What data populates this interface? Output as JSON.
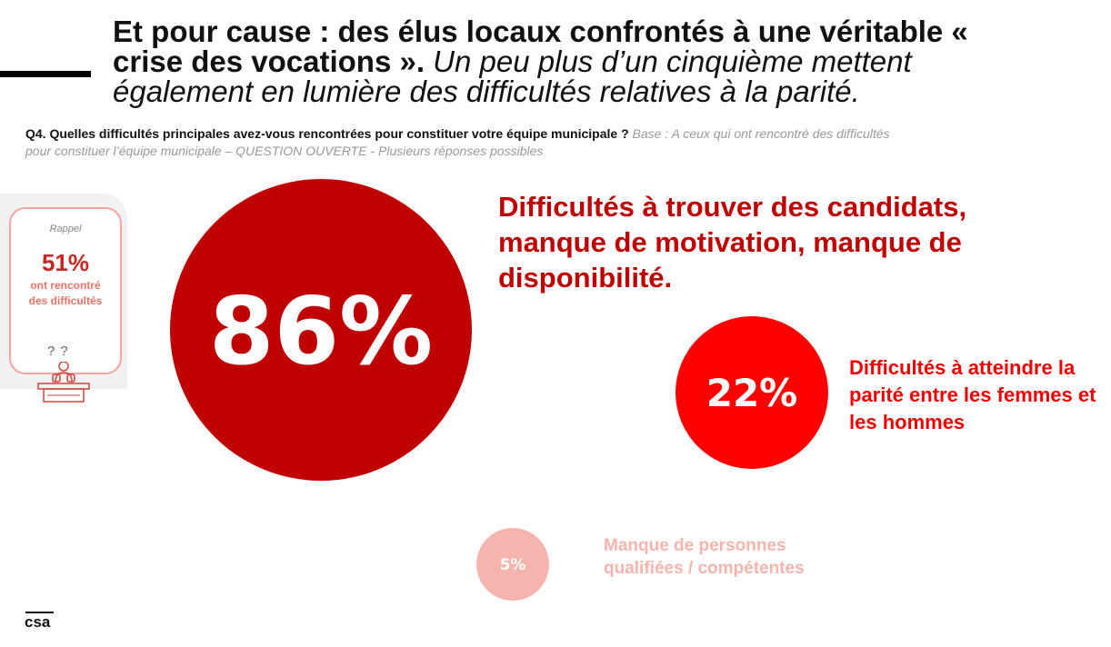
{
  "title": {
    "bold_text": "Et pour cause : des élus locaux confrontés à une véritable « crise des vocations ».",
    "italic_text": " Un peu plus d’un cinquième mettent également en lumière des difficultés relatives à la parité."
  },
  "question": {
    "label": "Q4. Quelles difficultés principales avez-vous rencontrées pour constituer votre équipe municipale ?",
    "base": " Base : A ceux qui ont rencontré des difficultés pour constituer l’équipe municipale – QUESTION OUVERTE - Plusieurs réponses possibles"
  },
  "rappel": {
    "label": "Rappel",
    "percent": "51%",
    "text": "ont rencontré des difficultés",
    "qmarks": "??"
  },
  "logo": {
    "text": "csa"
  },
  "colors": {
    "dark_red": "#c00000",
    "red": "#ff0000",
    "pink": "#f6b4ac",
    "rappel_red": "#c8261e"
  },
  "chart_data": {
    "type": "bubble",
    "title": "Q4. Quelles difficultés principales avez-vous rencontrées pour constituer votre équipe municipale ?",
    "unit": "%",
    "items": [
      {
        "label": "Difficultés à trouver des candidats, manque de motivation, manque de disponibilité.",
        "value": 86,
        "display": "86%",
        "color": "#c00000"
      },
      {
        "label": "Difficultés à atteindre la parité entre les femmes et les hommes",
        "value": 22,
        "display": "22%",
        "color": "#ff0000"
      },
      {
        "label": "Manque de personnes qualifiées / compétentes",
        "value": 5,
        "display": "5%",
        "color": "#f6b4ac"
      }
    ]
  }
}
